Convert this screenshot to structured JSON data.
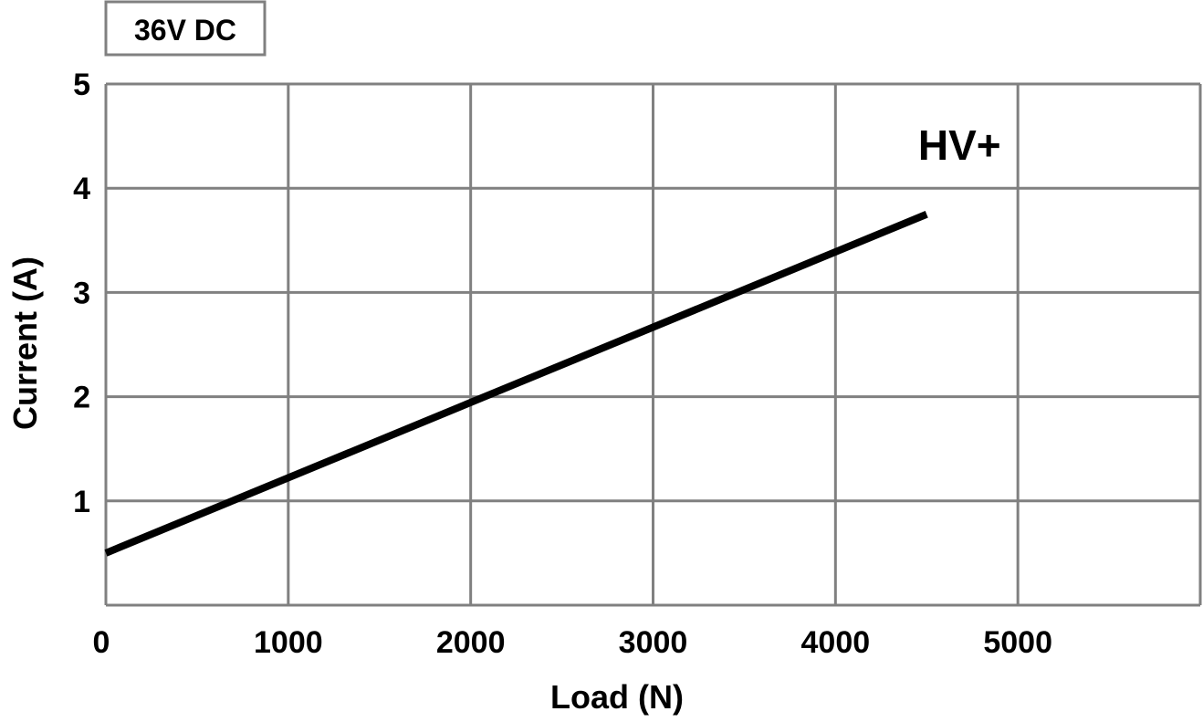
{
  "chart_data": {
    "type": "line",
    "annotation": "36V DC",
    "xlabel": "Load (N)",
    "ylabel": "Current (A)",
    "xlim": [
      0,
      6000
    ],
    "ylim": [
      0,
      5
    ],
    "x_ticks": [
      0,
      1000,
      2000,
      3000,
      4000,
      5000
    ],
    "y_ticks": [
      1,
      2,
      3,
      4,
      5
    ],
    "grid": true,
    "series": [
      {
        "name": "HV+",
        "x": [
          0,
          4500
        ],
        "y": [
          0.5,
          3.75
        ],
        "color": "#000000"
      }
    ]
  }
}
